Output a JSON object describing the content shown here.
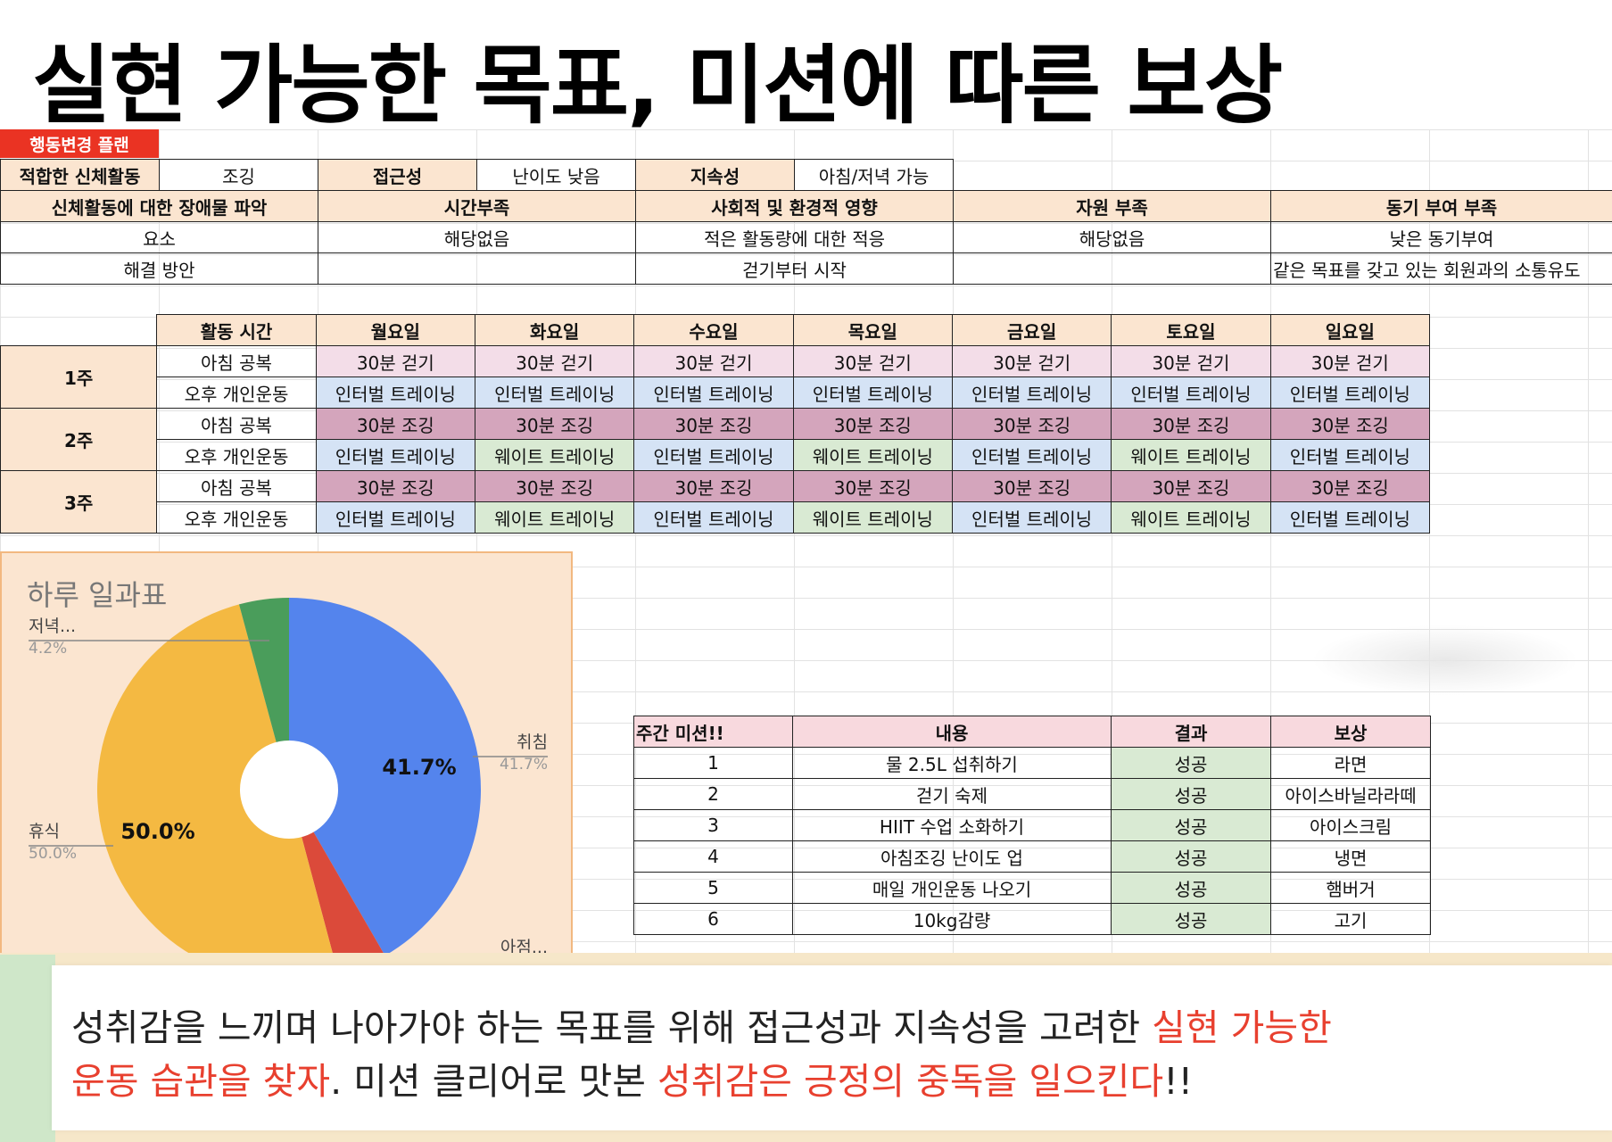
{
  "title": "실현 가능한 목표, 미션에 따른 보상",
  "plan": {
    "badge": "행동변경 플랜",
    "row1": [
      "적합한 신체활동",
      "조깅",
      "접근성",
      "난이도 낮음",
      "지속성",
      "아침/저녁 가능"
    ],
    "header": [
      "신체활동에 대한 장애물 파악",
      "시간부족",
      "사회적 및 환경적 영향",
      "자원 부족",
      "동기 부여 부족"
    ],
    "factor": [
      "요소",
      "해당없음",
      "적은 활동량에 대한 적응",
      "해당없음",
      "낮은 동기부여"
    ],
    "solution": [
      "해결 방안",
      "",
      "걷기부터 시작",
      "",
      "같은 목표를 갖고 있는 회원과의 소통유도"
    ]
  },
  "schedule": {
    "header": [
      "",
      "활동 시간",
      "월요일",
      "화요일",
      "수요일",
      "목요일",
      "금요일",
      "토요일",
      "일요일"
    ],
    "weeks": [
      {
        "label": "1주",
        "rows": [
          {
            "time": "아침 공복",
            "cells": [
              "30분 걷기",
              "30분 걷기",
              "30분 걷기",
              "30분 걷기",
              "30분 걷기",
              "30분 걷기",
              "30분 걷기"
            ],
            "kinds": [
              "pink",
              "pink",
              "pink",
              "pink",
              "pink",
              "pink",
              "pink"
            ]
          },
          {
            "time": "오후 개인운동",
            "cells": [
              "인터벌 트레이닝",
              "인터벌 트레이닝",
              "인터벌 트레이닝",
              "인터벌 트레이닝",
              "인터벌 트레이닝",
              "인터벌 트레이닝",
              "인터벌 트레이닝"
            ],
            "kinds": [
              "blue",
              "blue",
              "blue",
              "blue",
              "blue",
              "blue",
              "blue"
            ]
          }
        ]
      },
      {
        "label": "2주",
        "rows": [
          {
            "time": "아침 공복",
            "cells": [
              "30분 조깅",
              "30분 조깅",
              "30분 조깅",
              "30분 조깅",
              "30분 조깅",
              "30분 조깅",
              "30분 조깅"
            ],
            "kinds": [
              "mauve",
              "mauve",
              "mauve",
              "mauve",
              "mauve",
              "mauve",
              "mauve"
            ]
          },
          {
            "time": "오후 개인운동",
            "cells": [
              "인터벌 트레이닝",
              "웨이트 트레이닝",
              "인터벌 트레이닝",
              "웨이트 트레이닝",
              "인터벌 트레이닝",
              "웨이트 트레이닝",
              "인터벌 트레이닝"
            ],
            "kinds": [
              "blue",
              "green",
              "blue",
              "green",
              "blue",
              "green",
              "blue"
            ]
          }
        ]
      },
      {
        "label": "3주",
        "rows": [
          {
            "time": "아침 공복",
            "cells": [
              "30분 조깅",
              "30분 조깅",
              "30분 조깅",
              "30분 조깅",
              "30분 조깅",
              "30분 조깅",
              "30분 조깅"
            ],
            "kinds": [
              "mauve",
              "mauve",
              "mauve",
              "mauve",
              "mauve",
              "mauve",
              "mauve"
            ]
          },
          {
            "time": "오후 개인운동",
            "cells": [
              "인터벌 트레이닝",
              "웨이트 트레이닝",
              "인터벌 트레이닝",
              "웨이트 트레이닝",
              "인터벌 트레이닝",
              "웨이트 트레이닝",
              "인터벌 트레이닝"
            ],
            "kinds": [
              "blue",
              "green",
              "blue",
              "green",
              "blue",
              "green",
              "blue"
            ]
          }
        ]
      }
    ]
  },
  "missions": {
    "header": [
      "주간 미션!!",
      "내용",
      "결과",
      "보상"
    ],
    "rows": [
      [
        "1",
        "물 2.5L 섭취하기",
        "성공",
        "라면"
      ],
      [
        "2",
        "걷기 숙제",
        "성공",
        "아이스바닐라라떼"
      ],
      [
        "3",
        "HIIT 수업 소화하기",
        "성공",
        "아이스크림"
      ],
      [
        "4",
        "아침조깅 난이도 업",
        "성공",
        "냉면"
      ],
      [
        "5",
        "매일 개인운동 나오기",
        "성공",
        "햄버거"
      ],
      [
        "6",
        "10kg감량",
        "성공",
        "고기"
      ]
    ]
  },
  "chart_data": {
    "type": "pie",
    "title": "하루 일과표",
    "slices": [
      {
        "label": "취침",
        "value": 41.7,
        "color": "#5484ed",
        "outer_label": "취침",
        "outer_value": "41.7%",
        "inner_label": "41.7%"
      },
      {
        "label": "아점...",
        "value": 4.2,
        "color": "#db4a3a",
        "outer_label": "아점...",
        "outer_value": "",
        "inner_label": ""
      },
      {
        "label": "휴식",
        "value": 50.0,
        "color": "#f4b942",
        "outer_label": "휴식",
        "outer_value": "50.0%",
        "inner_label": "50.0%"
      },
      {
        "label": "저녁...",
        "value": 4.2,
        "color": "#4a9d5b",
        "outer_label": "저녁...",
        "outer_value": "4.2%",
        "inner_label": ""
      }
    ],
    "donut_hole": true
  },
  "banner": {
    "line1_a": "성취감을 느끼며 나아가야 하는 목표를 위해 접근성과 지속성을 고려한 ",
    "line1_red": "실현 가능한",
    "line2_red1": "운동 습관을 찾자",
    "line2_b": ". 미션 클리어로 맛본 ",
    "line2_red2": "성취감은 긍정의 중독을 일으킨다",
    "line2_c": "!!"
  }
}
